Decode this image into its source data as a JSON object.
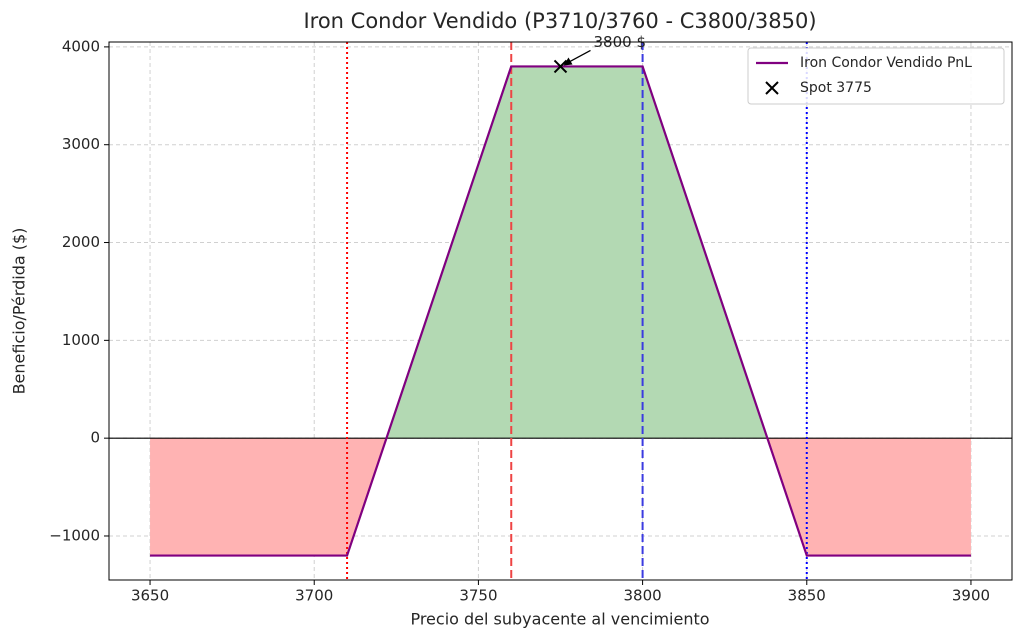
{
  "chart_data": {
    "type": "line",
    "title": "Iron Condor Vendido (P3710/3760 - C3800/3850)",
    "x_label": "Precio del subyacente al vencimiento",
    "y_label": "Beneficio/Pérdida ($)",
    "x": [
      3650,
      3710,
      3760,
      3800,
      3850,
      3900
    ],
    "series": [
      {
        "name": "Iron Condor Vendido PnL",
        "color": "#800080",
        "values": [
          -1200,
          -1200,
          3800,
          3800,
          -1200,
          -1200
        ]
      }
    ],
    "profit_color": "#b3d9b3",
    "loss_color": "#ffb3b3",
    "points": {
      "name": "Spot 3775",
      "color": "#000000",
      "x": [
        3775
      ],
      "values": [
        3800
      ]
    },
    "annotation": {
      "text": "3800 $",
      "x": 3775,
      "y": 3800
    },
    "vlines": [
      {
        "x": 3710,
        "color": "#ff0000",
        "style": "dotted"
      },
      {
        "x": 3760,
        "color": "#ee4444",
        "style": "dashed"
      },
      {
        "x": 3800,
        "color": "#3b3be0",
        "style": "dashed"
      },
      {
        "x": 3850,
        "color": "#0000ff",
        "style": "dotted"
      }
    ],
    "hline": 0,
    "xlim": [
      3637.5,
      3912.5
    ],
    "xticks": [
      3650,
      3700,
      3750,
      3800,
      3850,
      3900
    ],
    "ylim": [
      -1450,
      4050
    ],
    "yticks": [
      {
        "value": -1000,
        "label": "−1000"
      },
      0,
      1000,
      2000,
      3000,
      4000
    ],
    "grid": true,
    "legend": "upper right"
  }
}
